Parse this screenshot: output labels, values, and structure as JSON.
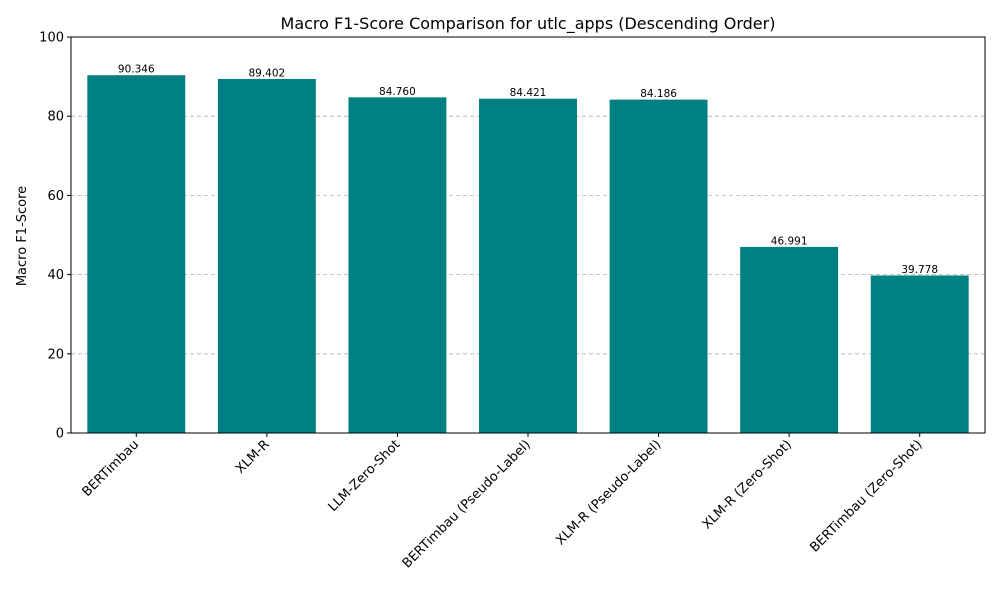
{
  "chart_data": {
    "type": "bar",
    "title": "Macro F1-Score Comparison for utlc_apps (Descending Order)",
    "xlabel": "",
    "ylabel": "Macro F1-Score",
    "ylim": [
      0,
      100
    ],
    "yticks": [
      0,
      20,
      40,
      60,
      80,
      100
    ],
    "grid": "y-dashed",
    "categories": [
      "BERTimbau",
      "XLM-R",
      "LLM-Zero-Shot",
      "BERTimbau (Pseudo-Label)",
      "XLM-R (Pseudo-Label)",
      "XLM-R (Zero-Shot)",
      "BERTimbau (Zero-Shot)"
    ],
    "values": [
      90.346,
      89.402,
      84.76,
      84.421,
      84.186,
      46.991,
      39.778
    ],
    "value_labels": [
      "90.346",
      "89.402",
      "84.760",
      "84.421",
      "84.186",
      "46.991",
      "39.778"
    ],
    "bar_color": "#008080"
  }
}
